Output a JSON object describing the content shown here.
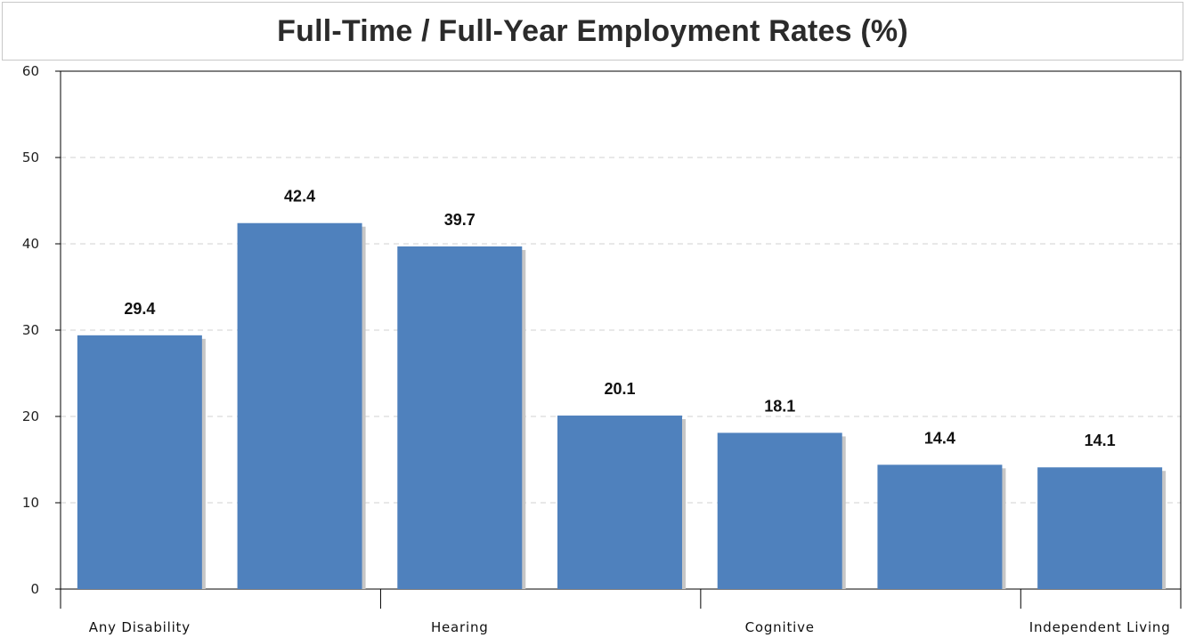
{
  "chart_data": {
    "type": "bar",
    "title": "Full-Time / Full-Year Employment Rates (%)",
    "xlabel": "",
    "ylabel": "",
    "categories": [
      "Any Disability",
      "",
      "Hearing",
      "",
      "Cognitive",
      "",
      "Independent Living"
    ],
    "values": [
      29.4,
      42.4,
      39.7,
      20.1,
      18.1,
      14.4,
      14.1
    ],
    "data_labels": [
      "29.4",
      "42.4",
      "39.7",
      "20.1",
      "18.1",
      "14.4",
      "14.1"
    ],
    "ylim": [
      0,
      60
    ],
    "yticks": [
      0,
      10,
      20,
      30,
      40,
      50,
      60
    ],
    "ytick_labels": [
      "0",
      "10",
      "20",
      "30",
      "40",
      "50",
      "60"
    ],
    "grid": true,
    "legend": "none",
    "colors": {
      "bar": "#4f81bd",
      "bar_shadow": "#c6c6c6",
      "grid": "#d0d0d0",
      "axis": "#000000"
    }
  }
}
